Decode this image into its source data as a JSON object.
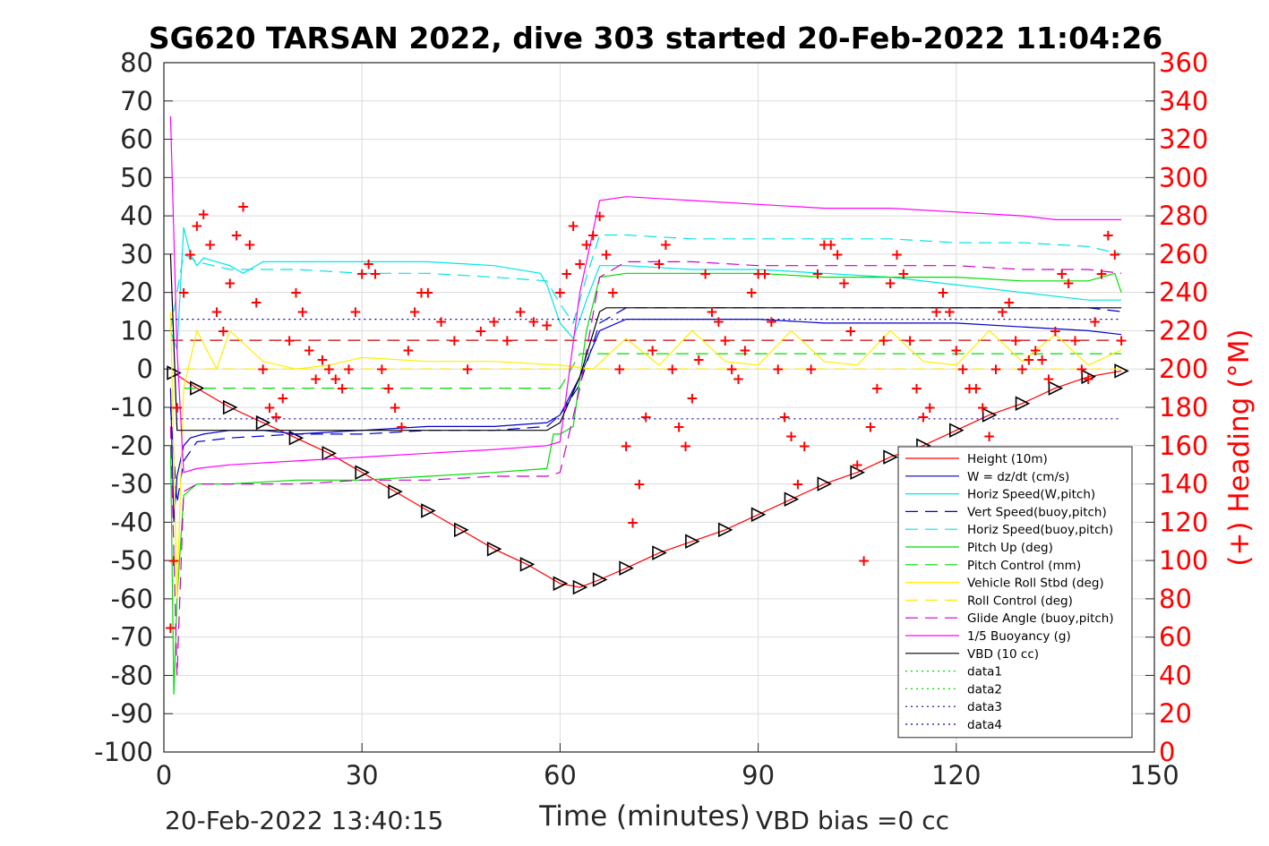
{
  "chart_data": {
    "type": "line",
    "title": "SG620 TARSAN 2022, dive 303 started 20-Feb-2022 11:04:26",
    "xlabel": "Time (minutes)",
    "ylabel": "",
    "y2label": "(+) Heading (°M)",
    "xlim": [
      0,
      150
    ],
    "ylim": [
      -100,
      80
    ],
    "y2lim": [
      0,
      360
    ],
    "x_ticks": [
      "0",
      "30",
      "60",
      "90",
      "120",
      "150"
    ],
    "y_ticks": [
      "80",
      "70",
      "60",
      "50",
      "40",
      "30",
      "20",
      "10",
      "0",
      "-10",
      "-20",
      "-30",
      "-40",
      "-50",
      "-60",
      "-70",
      "-80",
      "-90",
      "-100"
    ],
    "y2_ticks": [
      "360",
      "340",
      "320",
      "300",
      "280",
      "260",
      "240",
      "220",
      "200",
      "180",
      "160",
      "140",
      "120",
      "100",
      "80",
      "60",
      "40",
      "20",
      "0"
    ],
    "grid": true,
    "legend_position": "bottom-right",
    "colors": {
      "axis_text": "#262626",
      "heading": "#ff0000",
      "grid": "#dcdcdc"
    },
    "series": [
      {
        "name": "Height (10m)",
        "color": "#ff0000",
        "style": "solid",
        "markers": "triangles",
        "x": [
          1.5,
          5,
          10,
          15,
          20,
          25,
          30,
          35,
          40,
          45,
          50,
          55,
          60,
          63,
          66,
          70,
          75,
          80,
          85,
          90,
          95,
          100,
          105,
          110,
          115,
          120,
          125,
          130,
          135,
          140,
          145
        ],
        "y": [
          -1,
          -5,
          -10,
          -14,
          -18,
          -22,
          -27,
          -32,
          -37,
          -42,
          -47,
          -51,
          -56,
          -57,
          -55,
          -52,
          -48,
          -45,
          -42,
          -38,
          -34,
          -30,
          -27,
          -23,
          -20,
          -16,
          -12,
          -9,
          -5,
          -2,
          -0.5
        ]
      },
      {
        "name": "W = dz/dt (cm/s)",
        "color": "#0000cc",
        "style": "solid",
        "x": [
          1,
          1.5,
          2,
          3,
          4,
          6,
          10,
          15,
          20,
          30,
          40,
          50,
          58,
          60,
          63,
          66,
          70,
          80,
          90,
          100,
          110,
          120,
          130,
          140,
          145
        ],
        "y": [
          -5,
          -40,
          -28,
          -20,
          -18,
          -17,
          -16,
          -16,
          -17,
          -16,
          -15,
          -15,
          -14,
          -12,
          -2,
          10,
          13,
          13,
          13,
          12,
          12,
          12,
          11,
          10,
          9
        ]
      },
      {
        "name": "Horiz Speed(W,pitch)",
        "color": "#00e5e5",
        "style": "solid",
        "x": [
          1,
          2,
          3,
          4,
          5,
          6,
          8,
          10,
          12,
          15,
          20,
          30,
          40,
          50,
          57,
          58,
          60,
          62,
          64,
          66,
          70,
          80,
          90,
          100,
          110,
          120,
          130,
          140,
          145
        ],
        "y": [
          10,
          5,
          37,
          30,
          27,
          29,
          28,
          27,
          25,
          28,
          28,
          28,
          28,
          27,
          25,
          22,
          12,
          8,
          18,
          27,
          27,
          26,
          26,
          25,
          24,
          22,
          20,
          18,
          18
        ]
      },
      {
        "name": "Vert Speed(buoy,pitch)",
        "color": "#0000cc",
        "style": "dashed",
        "x": [
          1,
          2,
          3,
          5,
          10,
          20,
          30,
          40,
          50,
          58,
          60,
          63,
          66,
          70,
          80,
          90,
          100,
          110,
          120,
          130,
          140,
          145
        ],
        "y": [
          -10,
          -35,
          -24,
          -19,
          -18,
          -17,
          -17,
          -16,
          -16,
          -15,
          -12,
          -4,
          12,
          16,
          16,
          16,
          16,
          16,
          16,
          16,
          16,
          15
        ]
      },
      {
        "name": "Horiz Speed(buoy,pitch)",
        "color": "#00e5e5",
        "style": "dashed",
        "x": [
          1,
          2,
          3,
          5,
          10,
          20,
          30,
          40,
          50,
          58,
          60,
          62,
          64,
          66,
          70,
          80,
          90,
          100,
          110,
          120,
          130,
          140,
          145
        ],
        "y": [
          10,
          20,
          30,
          28,
          26,
          26,
          25,
          25,
          24,
          23,
          17,
          12,
          24,
          35,
          35,
          34,
          34,
          34,
          34,
          33,
          33,
          32,
          30
        ]
      },
      {
        "name": "Pitch Up (deg)",
        "color": "#00dd00",
        "style": "solid",
        "x": [
          1,
          1.5,
          2,
          3,
          5,
          10,
          20,
          30,
          40,
          50,
          58,
          59,
          60,
          62,
          64,
          66,
          70,
          80,
          90,
          100,
          110,
          120,
          130,
          140,
          144,
          145
        ],
        "y": [
          -20,
          -85,
          -60,
          -33,
          -30,
          -30,
          -29,
          -29,
          -28,
          -27,
          -26,
          -17,
          -17,
          -15,
          10,
          24,
          25,
          25,
          25,
          24,
          24,
          24,
          23,
          23,
          25,
          20
        ]
      },
      {
        "name": "Pitch Control (mm)",
        "color": "#00dd00",
        "style": "dashed",
        "x": [
          3,
          58,
          60,
          63,
          145
        ],
        "y": [
          -5,
          -5,
          -5,
          4,
          4
        ]
      },
      {
        "name": "Vehicle Roll Stbd (deg)",
        "color": "#ffee00",
        "style": "solid",
        "x": [
          1,
          2,
          3,
          5,
          8,
          10,
          15,
          20,
          25,
          30,
          40,
          50,
          60,
          65,
          70,
          75,
          80,
          85,
          90,
          95,
          100,
          105,
          110,
          115,
          120,
          125,
          130,
          135,
          140,
          145
        ],
        "y": [
          15,
          -60,
          -5,
          10,
          0,
          10,
          2,
          0,
          1,
          3,
          2,
          2,
          1,
          0,
          8,
          1,
          10,
          2,
          1,
          10,
          2,
          1,
          10,
          2,
          1,
          10,
          2,
          9,
          1,
          5
        ]
      },
      {
        "name": "Roll Control (deg)",
        "color": "#ffee00",
        "style": "dashed",
        "x": [
          3,
          145
        ],
        "y": [
          0,
          0
        ]
      },
      {
        "name": "Glide Angle (buoy,pitch)",
        "color": "#cc00cc",
        "style": "dashed",
        "x": [
          1,
          2,
          3,
          5,
          10,
          20,
          30,
          40,
          50,
          58,
          60,
          63,
          66,
          70,
          80,
          90,
          100,
          110,
          120,
          130,
          140,
          145
        ],
        "y": [
          -15,
          -80,
          -32,
          -30,
          -30,
          -30,
          -29,
          -29,
          -28,
          -28,
          -27,
          -5,
          24,
          28,
          28,
          27,
          27,
          27,
          27,
          26,
          26,
          25
        ]
      },
      {
        "name": "1/5 Buoyancy (g)",
        "color": "#ff00ff",
        "style": "solid",
        "x": [
          1,
          2,
          3,
          5,
          10,
          20,
          30,
          40,
          50,
          58,
          60,
          63,
          66,
          70,
          80,
          90,
          100,
          110,
          120,
          130,
          135,
          145
        ],
        "y": [
          66,
          5,
          -27,
          -26,
          -25,
          -24,
          -23,
          -22,
          -21,
          -20,
          -19,
          20,
          44,
          45,
          44,
          43,
          42,
          42,
          41,
          40,
          39,
          39
        ]
      },
      {
        "name": "VBD (10 cc)",
        "color": "#000000",
        "style": "solid",
        "x": [
          1,
          2,
          3,
          58,
          60,
          63,
          66,
          67,
          145
        ],
        "y": [
          30,
          -16,
          -16,
          -16,
          -14,
          -2,
          15,
          16,
          16
        ]
      },
      {
        "name": "data1",
        "color": "#00dd00",
        "style": "dotted",
        "x": [
          0,
          145
        ],
        "y": [
          null,
          null
        ]
      },
      {
        "name": "data2",
        "color": "#00dd00",
        "style": "dotted",
        "x": [
          0,
          145
        ],
        "y": [
          null,
          null
        ]
      },
      {
        "name": "data3",
        "color": "#0000aa",
        "style": "dotted",
        "x": [
          1,
          145
        ],
        "y": [
          13,
          13
        ]
      },
      {
        "name": "data4",
        "color": "#0000aa",
        "style": "dotted",
        "x": [
          1,
          145
        ],
        "y": [
          -13,
          -13
        ]
      }
    ],
    "reference_lines": [
      {
        "color": "#cc0000",
        "style": "dashed",
        "y": 7.5
      }
    ],
    "heading": {
      "axis": "right",
      "marker": "+",
      "color": "#ff0000",
      "x": [
        1,
        1.5,
        2,
        3,
        4,
        5,
        6,
        7,
        8,
        9,
        10,
        11,
        12,
        13,
        14,
        15,
        16,
        17,
        18,
        19,
        20,
        21,
        22,
        23,
        24,
        25,
        26,
        27,
        28,
        29,
        30,
        31,
        32,
        33,
        34,
        35,
        36,
        37,
        38,
        39,
        40,
        42,
        44,
        46,
        48,
        50,
        52,
        54,
        56,
        58,
        60,
        61,
        62,
        63,
        64,
        65,
        66,
        67,
        68,
        69,
        70,
        71,
        72,
        73,
        74,
        75,
        76,
        77,
        78,
        79,
        80,
        81,
        82,
        83,
        84,
        85,
        86,
        87,
        88,
        89,
        90,
        91,
        92,
        93,
        94,
        95,
        96,
        97,
        98,
        99,
        100,
        101,
        102,
        103,
        104,
        105,
        106,
        107,
        108,
        109,
        110,
        111,
        112,
        113,
        114,
        115,
        116,
        117,
        118,
        119,
        120,
        121,
        122,
        123,
        124,
        125,
        126,
        127,
        128,
        129,
        130,
        131,
        132,
        133,
        134,
        135,
        136,
        137,
        138,
        139,
        140,
        141,
        142,
        143,
        144,
        145
      ],
      "y": [
        65,
        100,
        180,
        240,
        260,
        275,
        281,
        265,
        230,
        220,
        245,
        270,
        285,
        265,
        235,
        200,
        180,
        175,
        185,
        215,
        240,
        230,
        210,
        195,
        205,
        200,
        195,
        190,
        200,
        230,
        250,
        255,
        250,
        200,
        190,
        180,
        170,
        210,
        230,
        240,
        240,
        225,
        215,
        200,
        220,
        225,
        215,
        230,
        225,
        223,
        240,
        250,
        275,
        255,
        265,
        270,
        280,
        260,
        240,
        200,
        160,
        120,
        140,
        175,
        210,
        255,
        265,
        200,
        170,
        160,
        185,
        205,
        250,
        230,
        225,
        215,
        200,
        195,
        210,
        240,
        250,
        250,
        225,
        200,
        175,
        165,
        140,
        160,
        200,
        250,
        265,
        265,
        260,
        245,
        220,
        150,
        100,
        170,
        190,
        215,
        245,
        260,
        250,
        215,
        190,
        175,
        180,
        230,
        240,
        230,
        210,
        200,
        190,
        190,
        180,
        165,
        200,
        230,
        235,
        215,
        200,
        205,
        210,
        205,
        195,
        220,
        250,
        245,
        215,
        200,
        195,
        225,
        250,
        270,
        260,
        215
      ]
    },
    "footer_left": "20-Feb-2022 13:40:15",
    "footer_right": "VBD bias =0 cc"
  }
}
